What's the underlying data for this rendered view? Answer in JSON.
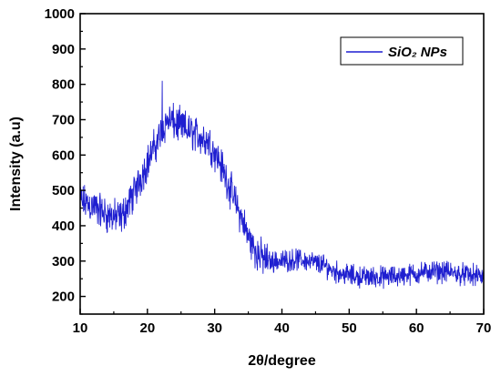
{
  "chart_data": {
    "type": "line",
    "title": "",
    "xlabel": "2θ/degree",
    "ylabel": "Intensity (a.u)",
    "xlim": [
      10,
      70
    ],
    "ylim": [
      150,
      1000
    ],
    "x_ticks": [
      10,
      20,
      30,
      40,
      50,
      60,
      70
    ],
    "y_ticks": [
      200,
      300,
      400,
      500,
      600,
      700,
      800,
      900,
      1000
    ],
    "x_tick_labels": [
      "10",
      "20",
      "30",
      "40",
      "50",
      "60",
      "70"
    ],
    "y_tick_labels": [
      "200",
      "300",
      "400",
      "500",
      "600",
      "700",
      "800",
      "900",
      "1000"
    ],
    "grid": false,
    "legend": {
      "placement": "top-right",
      "entries": [
        "SiO₂ NPs"
      ]
    },
    "series": [
      {
        "name": "SiO₂ NPs",
        "color": "#1f1fd0",
        "x": [
          10,
          12,
          14,
          16,
          18,
          20,
          21,
          22,
          23,
          24,
          25,
          26,
          27,
          28,
          29,
          30,
          31,
          32,
          33,
          34,
          35,
          36,
          37,
          38,
          40,
          42,
          44,
          46,
          48,
          50,
          52,
          54,
          56,
          58,
          60,
          62,
          64,
          66,
          68,
          70
        ],
        "y": [
          470,
          455,
          430,
          420,
          490,
          580,
          620,
          660,
          700,
          690,
          680,
          670,
          660,
          650,
          640,
          610,
          570,
          520,
          470,
          420,
          370,
          330,
          310,
          300,
          300,
          305,
          300,
          290,
          270,
          260,
          255,
          255,
          255,
          260,
          265,
          270,
          270,
          265,
          260,
          255
        ],
        "noise_amplitude": 45
      }
    ],
    "annotations": [
      {
        "x": 22.2,
        "y": 810,
        "label": ""
      }
    ]
  }
}
